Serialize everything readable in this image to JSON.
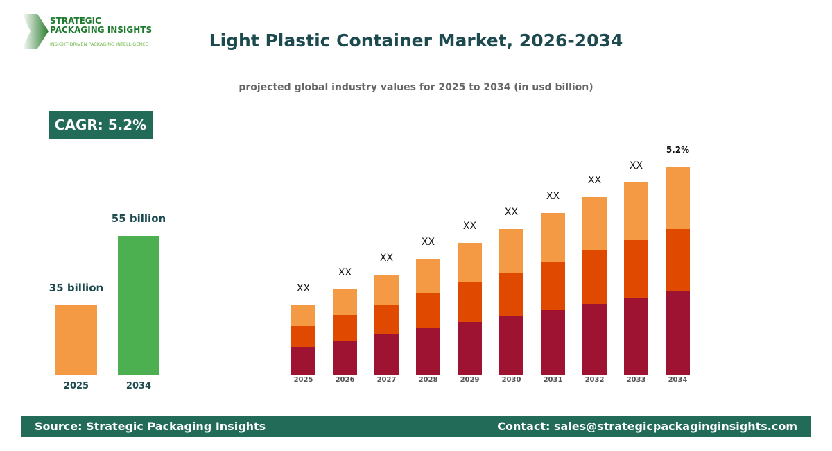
{
  "logo": {
    "line1": "STRATEGIC",
    "line2": "PACKAGING INSIGHTS",
    "tagline": "INSIGHT-DRIVEN PACKAGING INTELLIGENCE"
  },
  "title": "Light Plastic Container Market, 2026-2034",
  "subtitle": "projected global industry values for 2025 to 2034 (in usd billion)",
  "cagr": "CAGR: 5.2%",
  "footer": {
    "source": "Source: Strategic Packaging Insights",
    "contact": "Contact: sales@strategicpackaginginsights.com"
  },
  "colors": {
    "orange_light": "#f49a44",
    "orange_dark": "#e04a00",
    "crimson": "#9e1232",
    "green": "#4caf50",
    "teal": "#236b59"
  },
  "chart_data": [
    {
      "type": "bar",
      "categories": [
        "2025",
        "2034"
      ],
      "values": [
        35,
        55
      ],
      "data_labels": [
        "35 billion",
        "55 billion"
      ],
      "colors": [
        "#f49a44",
        "#4caf50"
      ]
    },
    {
      "type": "bar",
      "stacked": true,
      "categories": [
        "2025",
        "2026",
        "2027",
        "2028",
        "2029",
        "2030",
        "2031",
        "2032",
        "2033",
        "2034"
      ],
      "series": [
        {
          "color": "#9e1232",
          "values": [
            40,
            49,
            58,
            67,
            76,
            84,
            93,
            102,
            111,
            120
          ]
        },
        {
          "color": "#e04a00",
          "values": [
            30,
            37,
            43,
            50,
            57,
            63,
            70,
            77,
            83,
            90
          ]
        },
        {
          "color": "#f49a44",
          "values": [
            30,
            37,
            43,
            50,
            57,
            63,
            70,
            77,
            83,
            90
          ]
        }
      ],
      "data_labels": [
        "XX",
        "XX",
        "XX",
        "XX",
        "XX",
        "XX",
        "XX",
        "XX",
        "XX",
        "5.2%"
      ]
    }
  ]
}
